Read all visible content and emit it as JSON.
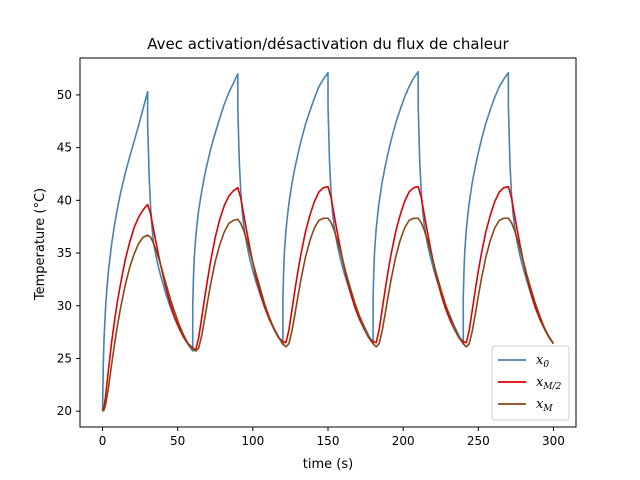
{
  "chart_data": {
    "type": "line",
    "title": "Avec activation/désactivation du flux de chaleur",
    "xlabel": "time (s)",
    "ylabel": "Temperature (°C)",
    "xlim": [
      -15,
      315
    ],
    "ylim": [
      18.5,
      53.5
    ],
    "xticks": [
      0,
      50,
      100,
      150,
      200,
      250,
      300
    ],
    "yticks": [
      20,
      25,
      30,
      35,
      40,
      45,
      50
    ],
    "grid": false,
    "legend_position": "lower right",
    "series": [
      {
        "name": "x_0",
        "legend_main": "x",
        "legend_sub": "0",
        "color": "#4682b4",
        "x": [
          0,
          0.5,
          1,
          2,
          3,
          4,
          6,
          8,
          10,
          12,
          15,
          18,
          21,
          24,
          27,
          30,
          30.01,
          30.5,
          31,
          32,
          33,
          34,
          36,
          38,
          40,
          42,
          45,
          48,
          51,
          54,
          57,
          60,
          60.01,
          60.5,
          61,
          62,
          63,
          64,
          66,
          68,
          70,
          72,
          75,
          78,
          81,
          84,
          87,
          90,
          90.01,
          90.5,
          91,
          92,
          93,
          94,
          96,
          98,
          100,
          102,
          105,
          108,
          111,
          114,
          117,
          120,
          120.01,
          120.5,
          121,
          122,
          123,
          124,
          126,
          128,
          130,
          132,
          135,
          138,
          141,
          144,
          147,
          150,
          150.01,
          150.5,
          151,
          152,
          153,
          154,
          156,
          158,
          160,
          162,
          165,
          168,
          171,
          174,
          177,
          180,
          180.01,
          180.5,
          181,
          182,
          183,
          184,
          186,
          188,
          190,
          192,
          195,
          198,
          201,
          204,
          207,
          210,
          210.01,
          210.5,
          211,
          212,
          213,
          214,
          216,
          218,
          220,
          222,
          225,
          228,
          231,
          234,
          237,
          240,
          240.01,
          240.5,
          241,
          242,
          243,
          244,
          246,
          248,
          250,
          252,
          255,
          258,
          261,
          264,
          267,
          270,
          270.01,
          270.5,
          271,
          272,
          273,
          274,
          276,
          278,
          280,
          282,
          285,
          288,
          291,
          294,
          297,
          300
        ],
        "y": [
          20,
          24.5,
          26.9,
          29.8,
          31.8,
          33.4,
          35.8,
          37.7,
          39.3,
          40.7,
          42.5,
          44.1,
          45.6,
          47.1,
          48.7,
          50.3,
          47.2,
          44.8,
          42.2,
          39.3,
          37.3,
          35.9,
          34.4,
          33.2,
          32.2,
          31.2,
          29.9,
          28.8,
          27.8,
          27,
          26.3,
          25.7,
          30.1,
          32.7,
          34.5,
          36.5,
          37.9,
          39.1,
          40.9,
          42.4,
          43.7,
          44.9,
          46.4,
          47.8,
          49.1,
          50.2,
          51.1,
          52,
          48.8,
          46.2,
          43.6,
          40.7,
          38.8,
          37.5,
          35.8,
          34.4,
          33.3,
          32.3,
          31,
          29.8,
          28.8,
          27.9,
          27.1,
          26.3,
          30.7,
          33.3,
          35.1,
          37.1,
          38.5,
          39.7,
          41.6,
          43.1,
          44.4,
          45.6,
          47.2,
          48.5,
          49.7,
          50.8,
          51.5,
          52.1,
          48.9,
          46.3,
          43.7,
          40.8,
          38.9,
          37.6,
          35.9,
          34.6,
          33.5,
          32.5,
          31.2,
          30,
          29,
          28.1,
          27.2,
          26.4,
          30.8,
          33.4,
          35.2,
          37.2,
          38.6,
          39.8,
          41.7,
          43.2,
          44.5,
          45.7,
          47.3,
          48.6,
          49.8,
          50.8,
          51.6,
          52.2,
          49,
          46.4,
          43.8,
          40.9,
          39,
          37.7,
          36,
          34.7,
          33.6,
          32.6,
          31.3,
          30.1,
          29.1,
          28.1,
          27.2,
          26.4,
          30.8,
          33.4,
          35.2,
          37.2,
          38.6,
          39.8,
          41.7,
          43.2,
          44.5,
          45.7,
          47.3,
          48.6,
          49.8,
          50.8,
          51.5,
          52.1,
          48.9,
          46.3,
          43.7,
          40.8,
          38.9,
          37.6,
          35.9,
          34.6,
          33.5,
          32.5,
          31.1,
          29.8,
          28.8,
          27.9,
          27.1,
          26.4
        ]
      },
      {
        "name": "x_{M/2}",
        "legend_main": "x",
        "legend_sub": "M/2",
        "color": "#e00000",
        "x": [
          0,
          1,
          2,
          3,
          4,
          6,
          8,
          10,
          12,
          15,
          18,
          21,
          24,
          27,
          30,
          32,
          34,
          36,
          38,
          40,
          42,
          45,
          48,
          51,
          54,
          57,
          60,
          62,
          64,
          66,
          68,
          70,
          72,
          75,
          78,
          81,
          84,
          87,
          90,
          92,
          94,
          96,
          98,
          100,
          102,
          105,
          108,
          111,
          114,
          117,
          120,
          122,
          124,
          126,
          128,
          130,
          132,
          135,
          138,
          141,
          144,
          147,
          150,
          152,
          154,
          156,
          158,
          160,
          162,
          165,
          168,
          171,
          174,
          177,
          180,
          182,
          184,
          186,
          188,
          190,
          192,
          195,
          198,
          201,
          204,
          207,
          210,
          212,
          214,
          216,
          218,
          220,
          222,
          225,
          228,
          231,
          234,
          237,
          240,
          242,
          244,
          246,
          248,
          250,
          252,
          255,
          258,
          261,
          264,
          267,
          270,
          272,
          274,
          276,
          278,
          280,
          282,
          285,
          288,
          291,
          294,
          297,
          300
        ],
        "y": [
          20,
          20.4,
          21.4,
          22.7,
          24,
          26.5,
          28.6,
          30.5,
          32.1,
          34.3,
          36,
          37.4,
          38.4,
          39.1,
          39.6,
          38.7,
          37.2,
          35.7,
          34.3,
          33,
          31.8,
          30.2,
          28.9,
          27.9,
          27,
          26.4,
          26,
          25.8,
          27,
          28.9,
          30.8,
          32.6,
          34.3,
          36.5,
          38.2,
          39.5,
          40.4,
          40.9,
          41.2,
          40.2,
          38.6,
          37,
          35.5,
          34.1,
          32.8,
          31.2,
          29.8,
          28.7,
          27.8,
          27,
          26.6,
          26.5,
          27.7,
          29.6,
          31.5,
          33.3,
          34.9,
          37,
          38.6,
          39.9,
          40.8,
          41.2,
          41.3,
          40.3,
          38.7,
          37.1,
          35.6,
          34.2,
          32.9,
          31.2,
          29.8,
          28.7,
          27.8,
          27,
          26.6,
          26.5,
          27.7,
          29.6,
          31.5,
          33.3,
          34.9,
          37,
          38.6,
          39.9,
          40.8,
          41.2,
          41.3,
          40.3,
          38.7,
          37.1,
          35.6,
          34.2,
          32.9,
          31.2,
          29.8,
          28.7,
          27.8,
          27,
          26.6,
          26.5,
          27.7,
          29.6,
          31.5,
          33.3,
          34.9,
          37,
          38.6,
          39.9,
          40.8,
          41.2,
          41.3,
          40.3,
          38.7,
          37.1,
          35.6,
          34.2,
          32.9,
          31.2,
          29.8,
          28.7,
          27.8,
          27,
          26.4
        ]
      },
      {
        "name": "x_M",
        "legend_main": "x",
        "legend_sub": "M",
        "color": "#8b4513",
        "x": [
          0,
          1,
          2,
          3,
          4,
          6,
          8,
          10,
          12,
          15,
          18,
          21,
          24,
          27,
          30,
          32,
          34,
          36,
          38,
          40,
          42,
          45,
          48,
          51,
          54,
          57,
          60,
          62,
          64,
          66,
          68,
          70,
          72,
          75,
          78,
          81,
          84,
          87,
          90,
          92,
          94,
          96,
          98,
          100,
          102,
          105,
          108,
          111,
          114,
          117,
          120,
          122,
          124,
          126,
          128,
          130,
          132,
          135,
          138,
          141,
          144,
          147,
          150,
          152,
          154,
          156,
          158,
          160,
          162,
          165,
          168,
          171,
          174,
          177,
          180,
          182,
          184,
          186,
          188,
          190,
          192,
          195,
          198,
          201,
          204,
          207,
          210,
          212,
          214,
          216,
          218,
          220,
          222,
          225,
          228,
          231,
          234,
          237,
          240,
          242,
          244,
          246,
          248,
          250,
          252,
          255,
          258,
          261,
          264,
          267,
          270,
          272,
          274,
          276,
          278,
          280,
          282,
          285,
          288,
          291,
          294,
          297,
          300
        ],
        "y": [
          20,
          20.1,
          20.6,
          21.4,
          22.3,
          24.4,
          26.4,
          28.2,
          29.8,
          31.9,
          33.6,
          34.9,
          35.9,
          36.5,
          36.7,
          36.5,
          35.9,
          35.1,
          34.2,
          33.2,
          32.2,
          30.7,
          29.4,
          28.2,
          27.2,
          26.4,
          25.9,
          25.7,
          26,
          27.2,
          28.8,
          30.5,
          32.1,
          34.2,
          35.8,
          37,
          37.8,
          38.1,
          38.2,
          37.8,
          37.1,
          36.2,
          35.2,
          34.1,
          33.1,
          31.6,
          30.1,
          28.9,
          27.8,
          27,
          26.4,
          26.1,
          26.4,
          27.6,
          29.2,
          30.9,
          32.5,
          34.6,
          36.2,
          37.4,
          38.1,
          38.3,
          38.3,
          37.9,
          37.2,
          36.3,
          35.3,
          34.2,
          33.1,
          31.6,
          30.2,
          29,
          27.9,
          27,
          26.4,
          26.1,
          26.4,
          27.6,
          29.2,
          30.9,
          32.5,
          34.6,
          36.2,
          37.4,
          38.1,
          38.3,
          38.3,
          37.9,
          37.2,
          36.3,
          35.3,
          34.2,
          33.1,
          31.6,
          30.2,
          29,
          27.9,
          27,
          26.4,
          26.1,
          26.4,
          27.6,
          29.2,
          30.9,
          32.5,
          34.6,
          36.2,
          37.4,
          38.1,
          38.3,
          38.3,
          37.9,
          37.2,
          36.3,
          35.3,
          34.2,
          33.1,
          31.6,
          30.2,
          29,
          27.9,
          27,
          26.4
        ]
      }
    ]
  }
}
